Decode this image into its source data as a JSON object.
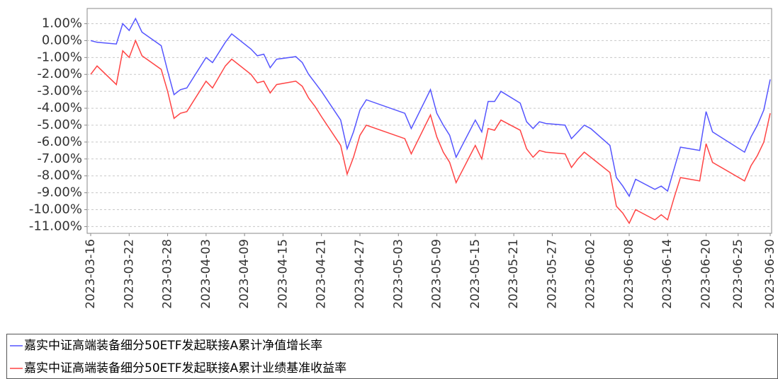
{
  "chart_data": {
    "type": "line",
    "x": [
      "2023-03-16",
      "2023-03-17",
      "2023-03-20",
      "2023-03-21",
      "2023-03-22",
      "2023-03-23",
      "2023-03-24",
      "2023-03-27",
      "2023-03-28",
      "2023-03-29",
      "2023-03-30",
      "2023-03-31",
      "2023-04-03",
      "2023-04-04",
      "2023-04-06",
      "2023-04-07",
      "2023-04-10",
      "2023-04-11",
      "2023-04-12",
      "2023-04-13",
      "2023-04-14",
      "2023-04-17",
      "2023-04-18",
      "2023-04-19",
      "2023-04-20",
      "2023-04-21",
      "2023-04-24",
      "2023-04-25",
      "2023-04-26",
      "2023-04-27",
      "2023-04-28",
      "2023-05-04",
      "2023-05-05",
      "2023-05-08",
      "2023-05-09",
      "2023-05-10",
      "2023-05-11",
      "2023-05-12",
      "2023-05-15",
      "2023-05-16",
      "2023-05-17",
      "2023-05-18",
      "2023-05-19",
      "2023-05-22",
      "2023-05-23",
      "2023-05-24",
      "2023-05-25",
      "2023-05-26",
      "2023-05-29",
      "2023-05-30",
      "2023-05-31",
      "2023-06-01",
      "2023-06-02",
      "2023-06-05",
      "2023-06-06",
      "2023-06-07",
      "2023-06-08",
      "2023-06-09",
      "2023-06-12",
      "2023-06-13",
      "2023-06-14",
      "2023-06-15",
      "2023-06-16",
      "2023-06-19",
      "2023-06-20",
      "2023-06-21",
      "2023-06-26",
      "2023-06-27",
      "2023-06-28",
      "2023-06-29",
      "2023-06-30"
    ],
    "series": [
      {
        "name": "嘉实中证高端装备细分50ETF发起联接A累计净值增长率",
        "color": "#5555ff",
        "values": [
          0.0,
          -0.1,
          -0.2,
          1.0,
          0.6,
          1.3,
          0.5,
          -0.3,
          -1.8,
          -3.2,
          -2.9,
          -2.8,
          -1.0,
          -1.3,
          -0.1,
          0.4,
          -0.5,
          -0.9,
          -0.8,
          -1.6,
          -1.1,
          -0.95,
          -1.3,
          -2.0,
          -2.5,
          -3.0,
          -4.7,
          -6.4,
          -5.4,
          -4.1,
          -3.5,
          -4.3,
          -5.2,
          -2.9,
          -4.3,
          -5.0,
          -5.6,
          -6.9,
          -4.7,
          -5.4,
          -3.6,
          -3.6,
          -3.0,
          -3.7,
          -4.8,
          -5.2,
          -4.8,
          -4.9,
          -5.0,
          -5.8,
          -5.4,
          -5.0,
          -5.2,
          -6.2,
          -8.1,
          -8.6,
          -9.2,
          -8.2,
          -8.8,
          -8.6,
          -8.9,
          -7.6,
          -6.3,
          -6.5,
          -4.2,
          -5.4,
          -6.6,
          -5.7,
          -5.0,
          -4.1,
          -2.3
        ]
      },
      {
        "name": "嘉实中证高端装备细分50ETF发起联接A累计业绩基准收益率",
        "color": "#ff4444",
        "values": [
          -2.0,
          -1.5,
          -2.6,
          -0.6,
          -1.0,
          0.0,
          -0.9,
          -1.7,
          -3.0,
          -4.6,
          -4.3,
          -4.2,
          -2.4,
          -2.8,
          -1.5,
          -1.1,
          -2.0,
          -2.5,
          -2.4,
          -3.1,
          -2.6,
          -2.4,
          -2.7,
          -3.4,
          -3.9,
          -4.5,
          -6.2,
          -7.9,
          -6.9,
          -5.6,
          -5.0,
          -5.8,
          -6.7,
          -4.4,
          -5.7,
          -6.6,
          -7.2,
          -8.4,
          -6.2,
          -7.0,
          -5.2,
          -5.3,
          -4.7,
          -5.3,
          -6.4,
          -6.9,
          -6.5,
          -6.6,
          -6.7,
          -7.5,
          -7.0,
          -6.6,
          -6.9,
          -7.8,
          -9.8,
          -10.2,
          -10.8,
          -10.0,
          -10.6,
          -10.3,
          -10.6,
          -9.3,
          -8.1,
          -8.3,
          -6.1,
          -7.2,
          -8.3,
          -7.4,
          -6.8,
          -6.0,
          -4.3
        ]
      }
    ],
    "xlim": [
      "2023-03-16",
      "2023-06-30"
    ],
    "xticks": [
      "2023-03-16",
      "2023-03-22",
      "2023-03-28",
      "2023-04-03",
      "2023-04-09",
      "2023-04-15",
      "2023-04-21",
      "2023-04-27",
      "2023-05-03",
      "2023-05-09",
      "2023-05-15",
      "2023-05-21",
      "2023-05-27",
      "2023-06-02",
      "2023-06-08",
      "2023-06-14",
      "2023-06-20",
      "2023-06-25",
      "2023-06-30"
    ],
    "ylim": [
      -11.4,
      1.9
    ],
    "yticks": [
      {
        "value": 1,
        "label": "1.00%"
      },
      {
        "value": 0,
        "label": "0.00%"
      },
      {
        "value": -1,
        "label": "-1.00%"
      },
      {
        "value": -2,
        "label": "-2.00%"
      },
      {
        "value": -3,
        "label": "-3.00%"
      },
      {
        "value": -4,
        "label": "-4.00%"
      },
      {
        "value": -5,
        "label": "-5.00%"
      },
      {
        "value": -6,
        "label": "-6.00%"
      },
      {
        "value": -7,
        "label": "-7.00%"
      },
      {
        "value": -8,
        "label": "-8.00%"
      },
      {
        "value": -9,
        "label": "-9.00%"
      },
      {
        "value": -10,
        "label": "-10.00%"
      },
      {
        "value": -11,
        "label": "-11.00%"
      }
    ],
    "grid": true,
    "legend": "bottom"
  }
}
